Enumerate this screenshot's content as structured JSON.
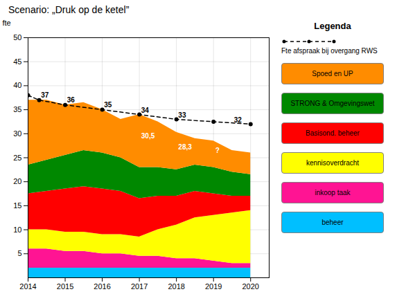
{
  "chart_data": {
    "type": "area",
    "stacked": true,
    "title": "Scenario: „Druk op de ketel”",
    "ylabel": "fte",
    "x": [
      2014,
      2014.5,
      2015,
      2015.5,
      2016,
      2016.5,
      2017,
      2017.5,
      2018,
      2018.5,
      2019,
      2019.5,
      2020
    ],
    "series": [
      {
        "name": "beheer",
        "color": "#00bfff",
        "values": [
          2.0,
          2.0,
          2.0,
          2.0,
          2.0,
          2.0,
          2.0,
          2.0,
          2.0,
          2.0,
          2.0,
          2.0,
          2.0
        ]
      },
      {
        "name": "inkoop taak",
        "color": "#ff1493",
        "values": [
          4.0,
          4.0,
          3.5,
          3.5,
          3.0,
          3.0,
          2.5,
          2.5,
          2.0,
          2.0,
          1.5,
          1.0,
          1.0
        ]
      },
      {
        "name": "kennisoverdracht",
        "color": "#ffff00",
        "values": [
          4.0,
          4.0,
          4.0,
          4.0,
          4.0,
          4.0,
          4.0,
          5.5,
          7.0,
          8.5,
          9.5,
          10.5,
          11.0
        ]
      },
      {
        "name": "Basisond. beheer",
        "color": "#ff0000",
        "values": [
          7.5,
          8.0,
          9.0,
          9.5,
          9.5,
          9.0,
          8.0,
          7.0,
          6.0,
          5.5,
          4.5,
          3.5,
          3.0
        ]
      },
      {
        "name": "STRONG & Omgevingswet",
        "color": "#008800",
        "values": [
          6.0,
          6.5,
          7.0,
          7.5,
          7.5,
          7.0,
          6.5,
          6.0,
          5.5,
          5.5,
          5.5,
          5.0,
          4.5
        ]
      },
      {
        "name": "Spoed en UP",
        "color": "#ff8c00",
        "values": [
          13.5,
          12.5,
          10.5,
          10.0,
          9.0,
          8.0,
          11.0,
          9.5,
          7.8,
          5.5,
          5.5,
          4.5,
          4.5
        ]
      },
      {
        "name": "Fte afspraak bij overgang RWS",
        "type": "line",
        "color": "black",
        "line_style": "dashed",
        "marker": "circle",
        "x": [
          2014,
          2014.3,
          2015,
          2016,
          2017,
          2018,
          2019,
          2020
        ],
        "values": [
          38.0,
          37.0,
          36.0,
          35.0,
          34.0,
          33.0,
          32.5,
          32.0
        ]
      }
    ],
    "annotations": [
      {
        "x": 2014.35,
        "y": 37.6,
        "text": "37",
        "color": "black"
      },
      {
        "x": 2015.05,
        "y": 36.5,
        "text": "36",
        "color": "black"
      },
      {
        "x": 2016.05,
        "y": 35.5,
        "text": "35",
        "color": "black"
      },
      {
        "x": 2017.05,
        "y": 34.4,
        "text": "34",
        "color": "black"
      },
      {
        "x": 2018.05,
        "y": 33.4,
        "text": "33",
        "color": "black"
      },
      {
        "x": 2019.55,
        "y": 32.4,
        "text": "32",
        "color": "black"
      },
      {
        "x": 2017.05,
        "y": 29.5,
        "text": "30,5",
        "color": "white"
      },
      {
        "x": 2018.05,
        "y": 27.2,
        "text": "28,3",
        "color": "white"
      },
      {
        "x": 2019.05,
        "y": 26.5,
        "text": "?",
        "color": "white"
      }
    ],
    "xlim": [
      2014,
      2020.5
    ],
    "xticks": [
      2014,
      2015,
      2016,
      2017,
      2018,
      2019,
      2020
    ],
    "ylim": [
      0,
      50
    ],
    "yticks": [
      5,
      10,
      15,
      20,
      25,
      30,
      35,
      40,
      45,
      50
    ],
    "grid": true,
    "legend": "right",
    "legend_title": "Legenda"
  }
}
